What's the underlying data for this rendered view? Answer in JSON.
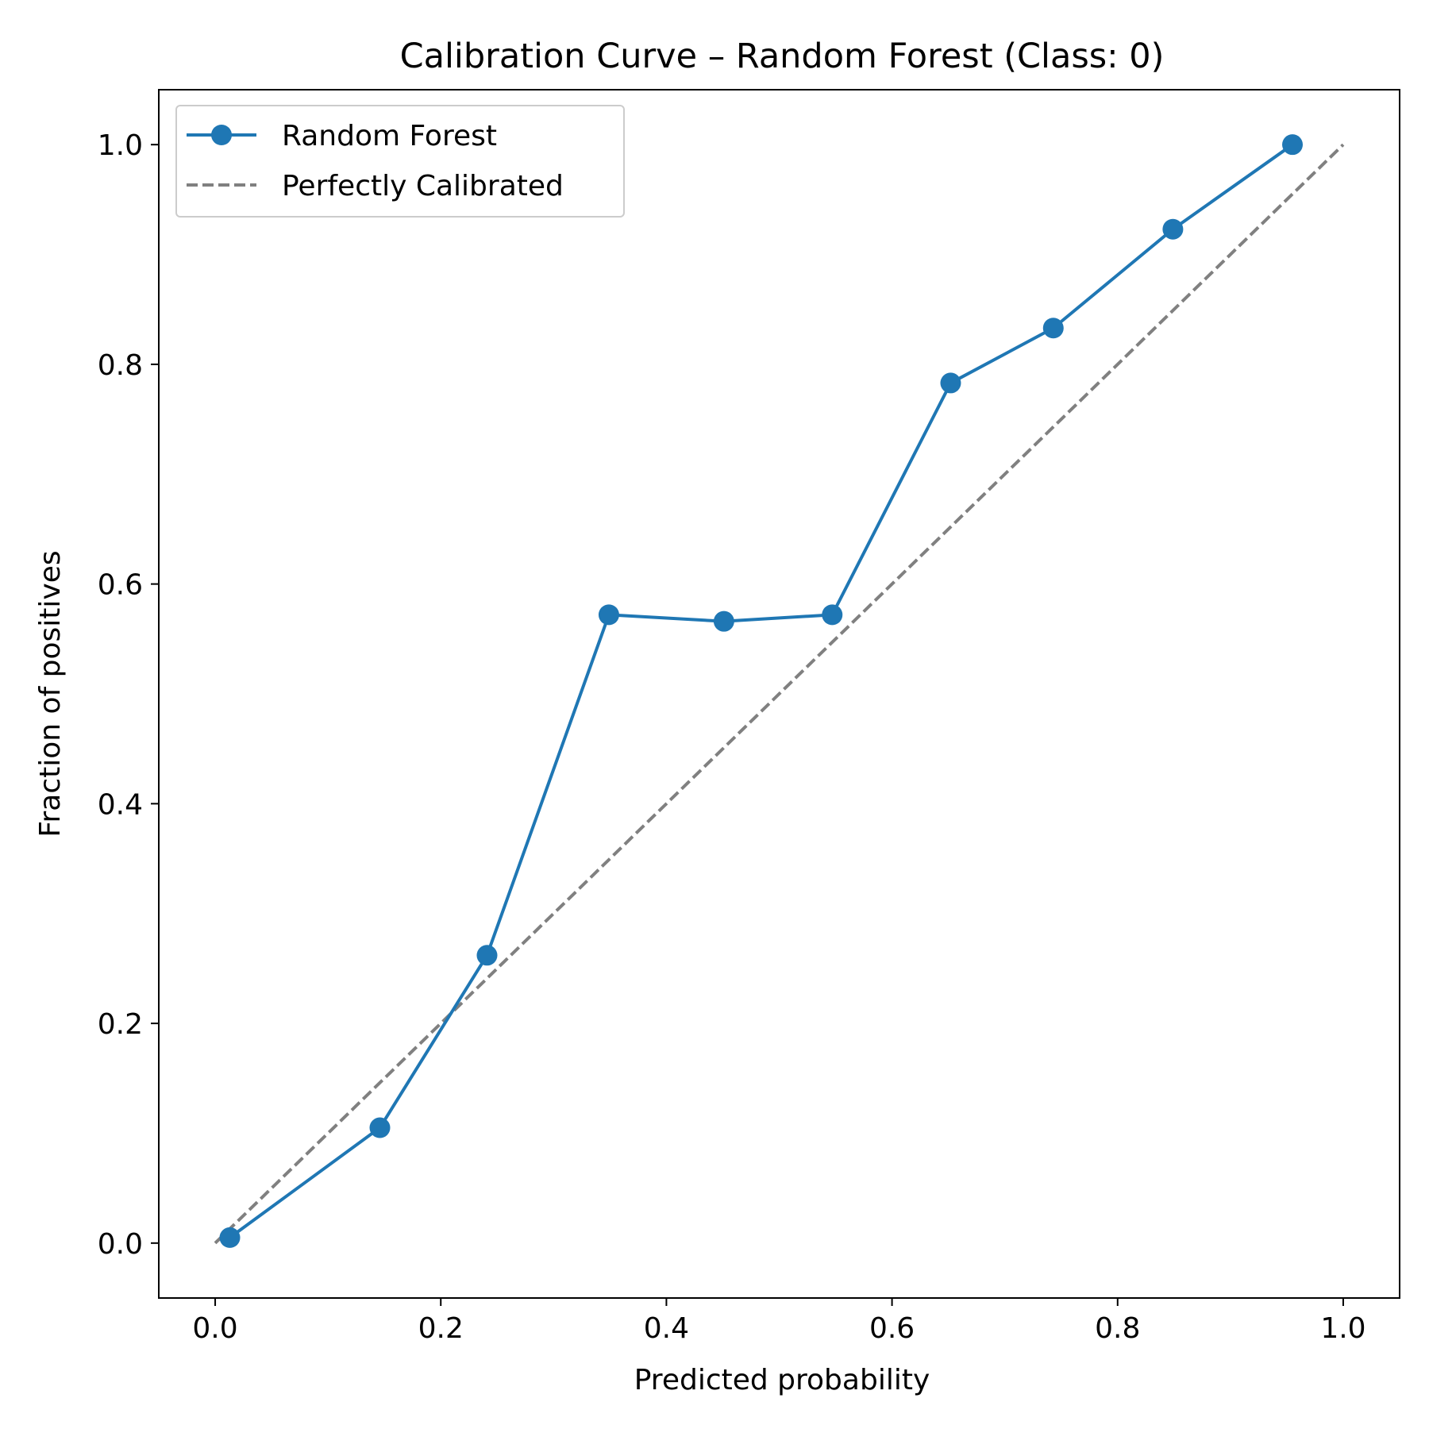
{
  "chart_data": {
    "type": "line",
    "title": "Calibration Curve – Random Forest (Class: 0)",
    "xlabel": "Predicted probability",
    "ylabel": "Fraction of positives",
    "xlim": [
      -0.05,
      1.05
    ],
    "ylim": [
      -0.05,
      1.05
    ],
    "xticks": [
      0.0,
      0.2,
      0.4,
      0.6,
      0.8,
      1.0
    ],
    "xtick_labels": [
      "0.0",
      "0.2",
      "0.4",
      "0.6",
      "0.8",
      "1.0"
    ],
    "yticks": [
      0.0,
      0.2,
      0.4,
      0.6,
      0.8,
      1.0
    ],
    "ytick_labels": [
      "0.0",
      "0.2",
      "0.4",
      "0.6",
      "0.8",
      "1.0"
    ],
    "grid": false,
    "legend_position": "top-left",
    "series": [
      {
        "name": "Random Forest",
        "color": "#1f77b4",
        "style": "solid",
        "marker": "circle",
        "x": [
          0.013,
          0.146,
          0.241,
          0.349,
          0.451,
          0.547,
          0.652,
          0.743,
          0.849,
          0.955
        ],
        "y": [
          0.005,
          0.105,
          0.262,
          0.572,
          0.566,
          0.572,
          0.783,
          0.833,
          0.923,
          1.0
        ]
      },
      {
        "name": "Perfectly Calibrated",
        "color": "#808080",
        "style": "dashed",
        "marker": "none",
        "x": [
          0.0,
          1.0
        ],
        "y": [
          0.0,
          1.0
        ]
      }
    ]
  }
}
